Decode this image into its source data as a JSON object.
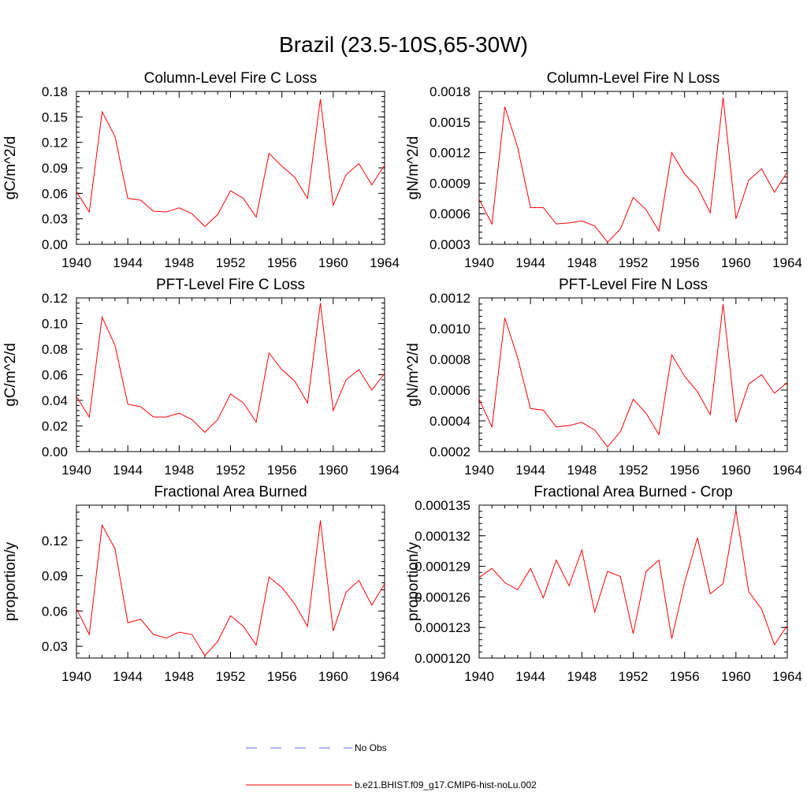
{
  "page_title": "Brazil (23.5-10S,65-30W)",
  "legend": {
    "items": [
      {
        "label": "No Obs",
        "color": "#6b6bd6",
        "style": "dashed"
      },
      {
        "label": "b.e21.BHIST.f09_g17.CMIP6-hist-noLu.002",
        "color": "#ff0000",
        "style": "solid"
      }
    ]
  },
  "chart_data": [
    {
      "type": "line",
      "title": "Column-Level Fire C Loss",
      "xlabel": "",
      "ylabel": "gC/m^2/d",
      "xlim": [
        1940,
        1964
      ],
      "ylim": [
        0.0,
        0.18
      ],
      "xticks": [
        "1940",
        "1944",
        "1948",
        "1952",
        "1956",
        "1960",
        "1964"
      ],
      "yticks": [
        "0.00",
        "0.03",
        "0.06",
        "0.09",
        "0.12",
        "0.15",
        "0.18"
      ],
      "x": [
        1940,
        1941,
        1942,
        1943,
        1944,
        1945,
        1946,
        1947,
        1948,
        1949,
        1950,
        1951,
        1952,
        1953,
        1954,
        1955,
        1956,
        1957,
        1958,
        1959,
        1960,
        1961,
        1962,
        1963,
        1964
      ],
      "series": [
        {
          "color": "#ff0000",
          "values": [
            0.062,
            0.038,
            0.156,
            0.127,
            0.054,
            0.052,
            0.039,
            0.038,
            0.043,
            0.036,
            0.021,
            0.035,
            0.063,
            0.054,
            0.032,
            0.107,
            0.092,
            0.079,
            0.054,
            0.171,
            0.046,
            0.082,
            0.095,
            0.07,
            0.093
          ]
        }
      ]
    },
    {
      "type": "line",
      "title": "Column-Level Fire N Loss",
      "xlabel": "",
      "ylabel": "gN/m^2/d",
      "xlim": [
        1940,
        1964
      ],
      "ylim": [
        0.0003,
        0.0018
      ],
      "xticks": [
        "1940",
        "1944",
        "1948",
        "1952",
        "1956",
        "1960",
        "1964"
      ],
      "yticks": [
        "0.0003",
        "0.0006",
        "0.0009",
        "0.0012",
        "0.0015",
        "0.0018"
      ],
      "x": [
        1940,
        1941,
        1942,
        1943,
        1944,
        1945,
        1946,
        1947,
        1948,
        1949,
        1950,
        1951,
        1952,
        1953,
        1954,
        1955,
        1956,
        1957,
        1958,
        1959,
        1960,
        1961,
        1962,
        1963,
        1964
      ],
      "series": [
        {
          "color": "#ff0000",
          "values": [
            0.00074,
            0.0005,
            0.00165,
            0.00125,
            0.00066,
            0.00066,
            0.0005,
            0.00051,
            0.00053,
            0.00048,
            0.00032,
            0.00045,
            0.00076,
            0.00064,
            0.00043,
            0.0012,
            0.00099,
            0.00086,
            0.00061,
            0.00174,
            0.00055,
            0.00093,
            0.00104,
            0.00081,
            0.00101
          ]
        }
      ]
    },
    {
      "type": "line",
      "title": "PFT-Level Fire C Loss",
      "xlabel": "",
      "ylabel": "gC/m^2/d",
      "xlim": [
        1940,
        1964
      ],
      "ylim": [
        0.0,
        0.12
      ],
      "xticks": [
        "1940",
        "1944",
        "1948",
        "1952",
        "1956",
        "1960",
        "1964"
      ],
      "yticks": [
        "0.00",
        "0.02",
        "0.04",
        "0.06",
        "0.08",
        "0.10",
        "0.12"
      ],
      "x": [
        1940,
        1941,
        1942,
        1943,
        1944,
        1945,
        1946,
        1947,
        1948,
        1949,
        1950,
        1951,
        1952,
        1953,
        1954,
        1955,
        1956,
        1957,
        1958,
        1959,
        1960,
        1961,
        1962,
        1963,
        1964
      ],
      "series": [
        {
          "color": "#ff0000",
          "values": [
            0.043,
            0.027,
            0.105,
            0.083,
            0.037,
            0.035,
            0.027,
            0.027,
            0.03,
            0.025,
            0.015,
            0.025,
            0.045,
            0.038,
            0.023,
            0.077,
            0.064,
            0.055,
            0.038,
            0.116,
            0.032,
            0.056,
            0.064,
            0.048,
            0.061
          ]
        }
      ]
    },
    {
      "type": "line",
      "title": "PFT-Level Fire N Loss",
      "xlabel": "",
      "ylabel": "gN/m^2/d",
      "xlim": [
        1940,
        1964
      ],
      "ylim": [
        0.0002,
        0.0012
      ],
      "xticks": [
        "1940",
        "1944",
        "1948",
        "1952",
        "1956",
        "1960",
        "1964"
      ],
      "yticks": [
        "0.0002",
        "0.0004",
        "0.0006",
        "0.0008",
        "0.0010",
        "0.0012"
      ],
      "x": [
        1940,
        1941,
        1942,
        1943,
        1944,
        1945,
        1946,
        1947,
        1948,
        1949,
        1950,
        1951,
        1952,
        1953,
        1954,
        1955,
        1956,
        1957,
        1958,
        1959,
        1960,
        1961,
        1962,
        1963,
        1964
      ],
      "series": [
        {
          "color": "#ff0000",
          "values": [
            0.00054,
            0.00036,
            0.00107,
            0.00081,
            0.00048,
            0.00047,
            0.00036,
            0.00037,
            0.00039,
            0.00034,
            0.00023,
            0.00033,
            0.00054,
            0.00045,
            0.00031,
            0.00083,
            0.00069,
            0.00059,
            0.00044,
            0.00116,
            0.00039,
            0.00064,
            0.0007,
            0.00058,
            0.00065
          ]
        }
      ]
    },
    {
      "type": "line",
      "title": "Fractional Area Burned",
      "xlabel": "",
      "ylabel": "proportion/y",
      "xlim": [
        1940,
        1964
      ],
      "ylim": [
        0.02,
        0.15
      ],
      "xticks": [
        "1940",
        "1944",
        "1948",
        "1952",
        "1956",
        "1960",
        "1964"
      ],
      "yticks": [
        "0.03",
        "0.06",
        "0.09",
        "0.12"
      ],
      "x": [
        1940,
        1941,
        1942,
        1943,
        1944,
        1945,
        1946,
        1947,
        1948,
        1949,
        1950,
        1951,
        1952,
        1953,
        1954,
        1955,
        1956,
        1957,
        1958,
        1959,
        1960,
        1961,
        1962,
        1963,
        1964
      ],
      "series": [
        {
          "color": "#ff0000",
          "values": [
            0.062,
            0.04,
            0.133,
            0.113,
            0.05,
            0.053,
            0.04,
            0.037,
            0.042,
            0.04,
            0.022,
            0.034,
            0.056,
            0.047,
            0.031,
            0.089,
            0.08,
            0.066,
            0.047,
            0.137,
            0.043,
            0.076,
            0.086,
            0.065,
            0.083
          ]
        }
      ]
    },
    {
      "type": "line",
      "title": "Fractional Area Burned - Crop",
      "xlabel": "",
      "ylabel": "proportion/y",
      "xlim": [
        1940,
        1964
      ],
      "ylim": [
        0.00012,
        0.000135
      ],
      "xticks": [
        "1940",
        "1944",
        "1948",
        "1952",
        "1956",
        "1960",
        "1964"
      ],
      "yticks": [
        "0.000120",
        "0.000123",
        "0.000126",
        "0.000129",
        "0.000132",
        "0.000135"
      ],
      "x": [
        1940,
        1941,
        1942,
        1943,
        1944,
        1945,
        1946,
        1947,
        1948,
        1949,
        1950,
        1951,
        1952,
        1953,
        1954,
        1955,
        1956,
        1957,
        1958,
        1959,
        1960,
        1961,
        1962,
        1963,
        1964
      ],
      "series": [
        {
          "color": "#ff0000",
          "values": [
            0.0001279,
            0.0001288,
            0.0001274,
            0.0001267,
            0.0001288,
            0.0001259,
            0.0001296,
            0.0001271,
            0.0001306,
            0.0001245,
            0.0001285,
            0.000128,
            0.0001224,
            0.0001285,
            0.0001296,
            0.0001219,
            0.0001274,
            0.0001318,
            0.0001263,
            0.0001273,
            0.0001345,
            0.0001265,
            0.0001248,
            0.0001213,
            0.0001232
          ]
        }
      ]
    }
  ]
}
